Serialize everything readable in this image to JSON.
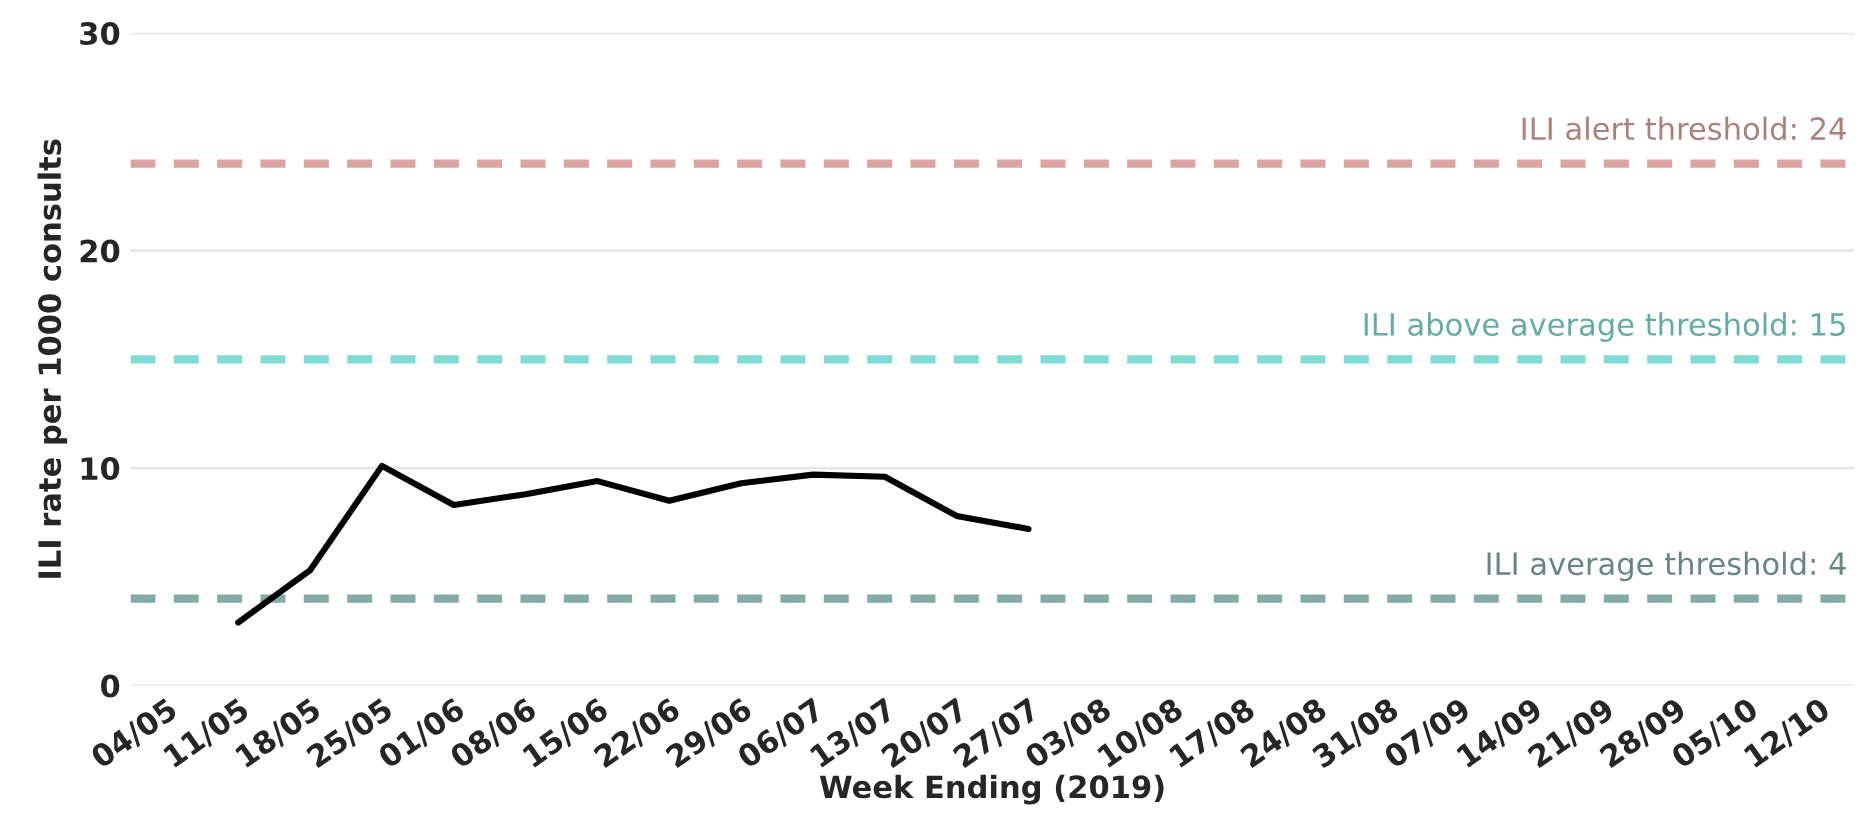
{
  "chart_data": {
    "type": "line",
    "xlabel": "Week Ending (2019)",
    "ylabel": "ILI rate per 1000 consults",
    "categories": [
      "04/05",
      "11/05",
      "18/05",
      "25/05",
      "01/06",
      "08/06",
      "15/06",
      "22/06",
      "29/06",
      "06/07",
      "13/07",
      "20/07",
      "27/07",
      "03/08",
      "10/08",
      "17/08",
      "24/08",
      "31/08",
      "07/09",
      "14/09",
      "21/09",
      "28/09",
      "05/10",
      "12/10"
    ],
    "series": [
      {
        "color": "#000000",
        "values": [
          null,
          2.9,
          5.3,
          10.1,
          8.3,
          8.8,
          9.4,
          8.5,
          9.3,
          9.7,
          9.6,
          7.8,
          7.2,
          null,
          null,
          null,
          null,
          null,
          null,
          null,
          null,
          null,
          null,
          null
        ]
      }
    ],
    "ylim": [
      0,
      30
    ],
    "yticks": [
      0,
      10,
      20,
      30
    ],
    "grid": "y",
    "legend": false,
    "marker": "none",
    "line_style": "solid",
    "ref_lines": [
      {
        "axis": "y",
        "value": 24,
        "label": "ILI alert threshold: 24",
        "color": "#dda49f",
        "line_style": "dashed"
      },
      {
        "axis": "y",
        "value": 15,
        "label": "ILI above average threshold: 15",
        "color": "#7edcd4",
        "line_style": "dashed"
      },
      {
        "axis": "y",
        "value": 4,
        "label": "ILI average threshold: 4",
        "color": "#83aca7",
        "line_style": "dashed"
      }
    ]
  }
}
